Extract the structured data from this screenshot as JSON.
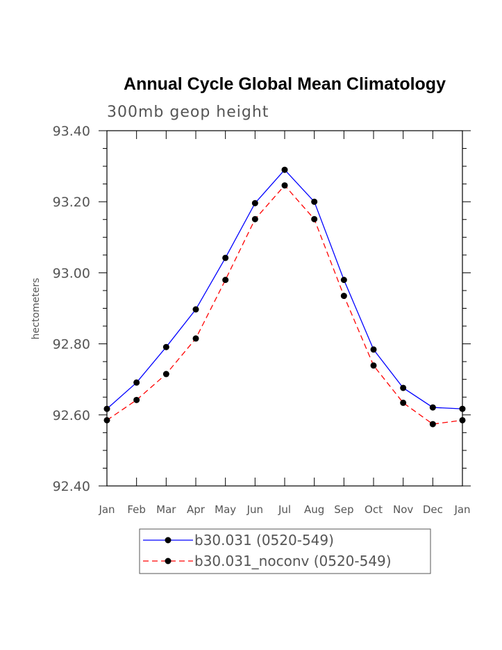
{
  "chart_data": {
    "type": "line",
    "title": "Annual Cycle Global Mean Climatology",
    "subtitle": "300mb geop height",
    "xlabel": "",
    "ylabel": "hectometers",
    "categories": [
      "Jan",
      "Feb",
      "Mar",
      "Apr",
      "May",
      "Jun",
      "Jul",
      "Aug",
      "Sep",
      "Oct",
      "Nov",
      "Dec",
      "Jan"
    ],
    "ylim": [
      92.4,
      93.4
    ],
    "yticks": [
      "92.40",
      "92.60",
      "92.80",
      "93.00",
      "93.20",
      "93.40"
    ],
    "series": [
      {
        "name": "b30.031 (0520-549)",
        "color": "#0000ff",
        "dash": "solid",
        "marker": "filled-circle",
        "values": [
          92.617,
          92.691,
          92.791,
          92.897,
          93.042,
          93.196,
          93.29,
          93.2,
          92.98,
          92.784,
          92.676,
          92.621,
          92.617
        ]
      },
      {
        "name": "b30.031_noconv (0520-549)",
        "color": "#ff0000",
        "dash": "dashed",
        "marker": "filled-circle",
        "values": [
          92.585,
          92.642,
          92.715,
          92.815,
          92.98,
          93.151,
          93.246,
          93.151,
          92.935,
          92.739,
          92.634,
          92.574,
          92.585
        ]
      }
    ],
    "grid": false,
    "legend_position": "bottom"
  }
}
